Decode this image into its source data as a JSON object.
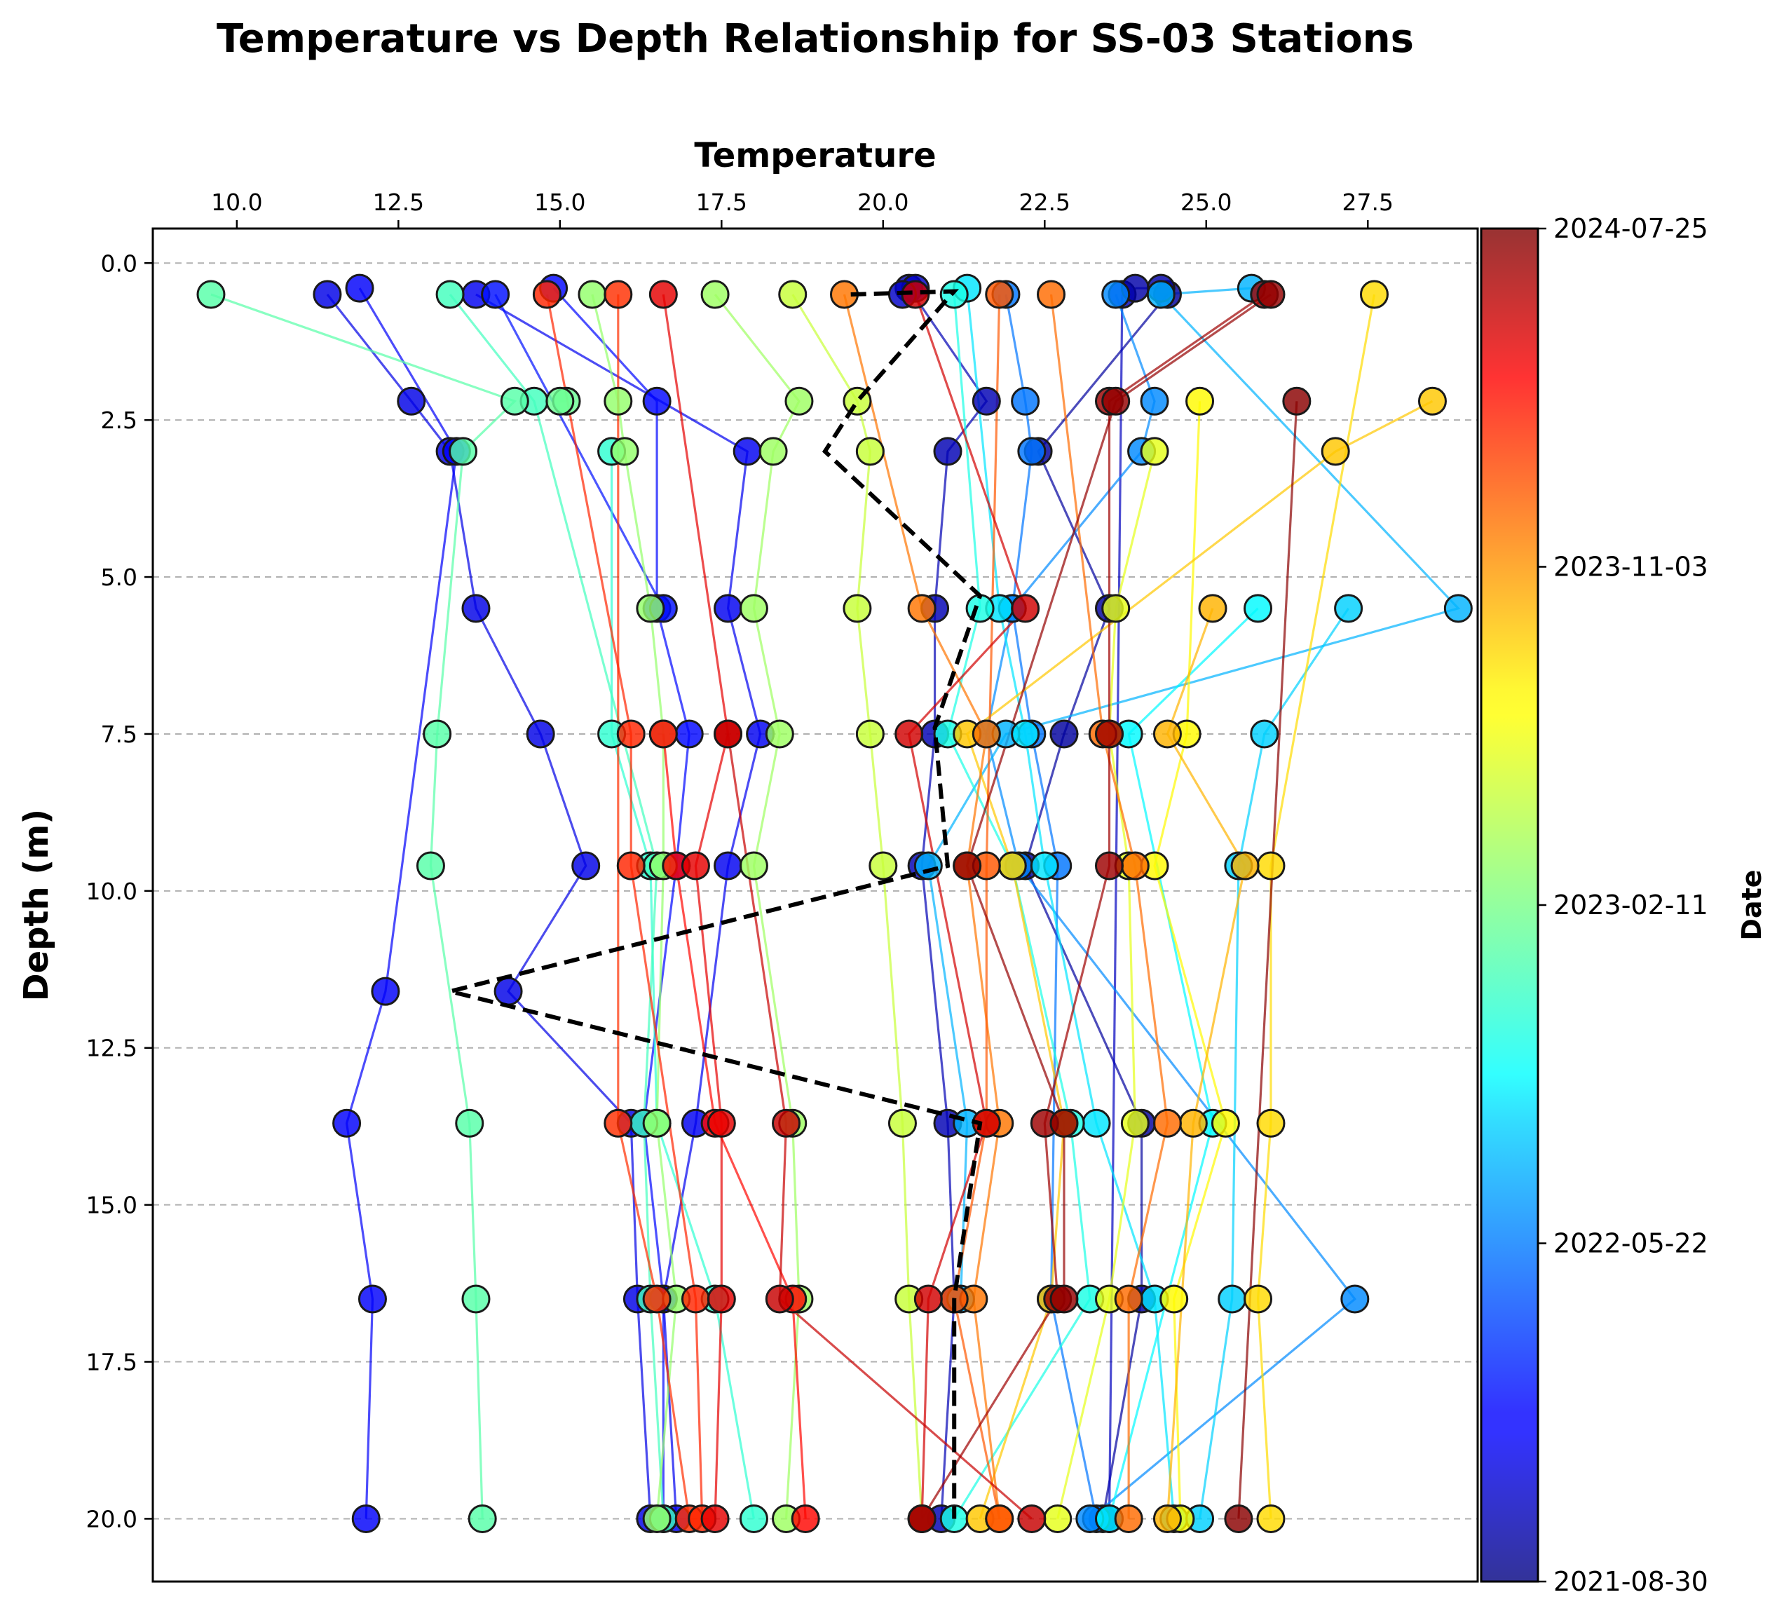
{
  "chart_data": {
    "type": "scatter",
    "title": "Temperature vs Depth Relationship for SS-03 Stations",
    "xlabel": "Temperature",
    "ylabel": "Depth (m)",
    "colorbar_label": "Date",
    "x_ticks": [
      10.0,
      12.5,
      15.0,
      17.5,
      20.0,
      22.5,
      25.0,
      27.5
    ],
    "x_tick_labels": [
      "10.0",
      "12.5",
      "15.0",
      "17.5",
      "20.0",
      "22.5",
      "25.0",
      "27.5"
    ],
    "y_ticks": [
      0.0,
      2.5,
      5.0,
      7.5,
      10.0,
      12.5,
      15.0,
      17.5,
      20.0
    ],
    "y_tick_labels": [
      "0.0",
      "2.5",
      "5.0",
      "7.5",
      "10.0",
      "12.5",
      "15.0",
      "17.5",
      "20.0"
    ],
    "xlim": [
      8.7,
      29.2
    ],
    "ylim": [
      21.0,
      -0.55
    ],
    "y_inverted": true,
    "x_axis_position": "top",
    "grid": "horizontal dashed",
    "colormap": "jet",
    "colorbar_ticks": [
      0.0,
      0.25,
      0.5,
      0.75,
      1.0
    ],
    "colorbar_tick_labels": [
      "2021-08-30",
      "2022-05-22",
      "2023-02-11",
      "2023-11-03",
      "2024-07-25"
    ],
    "colorbar_reversed_scale": true,
    "colorbar_note": "",
    "mean_profile_color": "#000000",
    "depths": [
      0.5,
      2.2,
      3.0,
      5.5,
      7.5,
      9.6,
      11.6,
      13.7,
      16.5,
      20.0
    ],
    "mean_profile": [
      {
        "temperature": 19.5,
        "depth": 0.5
      },
      {
        "temperature": 21.1,
        "depth": 0.45
      },
      {
        "temperature": 19.6,
        "depth": 2.2
      },
      {
        "temperature": 19.1,
        "depth": 3.0
      },
      {
        "temperature": 21.5,
        "depth": 5.3
      },
      {
        "temperature": 20.8,
        "depth": 7.4
      },
      {
        "temperature": 21.0,
        "depth": 9.6
      },
      {
        "temperature": 13.3,
        "depth": 11.6
      },
      {
        "temperature": 21.5,
        "depth": 13.7
      },
      {
        "temperature": 21.1,
        "depth": 16.5
      },
      {
        "temperature": 21.1,
        "depth": 20.0
      }
    ],
    "series": [
      {
        "c": 0.1,
        "points": [
          [
            11.4,
            0.5
          ],
          [
            12.7,
            2.2
          ],
          [
            13.3,
            3.0
          ],
          [
            13.7,
            5.5
          ],
          [
            14.7,
            7.5
          ],
          [
            15.4,
            9.6
          ],
          [
            14.2,
            11.6
          ],
          [
            16.1,
            13.7
          ],
          [
            16.2,
            16.5
          ],
          [
            16.4,
            20.0
          ]
        ]
      },
      {
        "c": 0.12,
        "points": [
          [
            11.9,
            0.4
          ],
          [
            13.4,
            3.0
          ],
          [
            12.3,
            11.6
          ],
          [
            11.7,
            13.7
          ],
          [
            12.1,
            16.5
          ],
          [
            12.0,
            20.0
          ]
        ]
      },
      {
        "c": 0.13,
        "points": [
          [
            14.9,
            0.4
          ],
          [
            16.5,
            2.2
          ],
          [
            16.5,
            5.5
          ],
          [
            17.0,
            7.5
          ],
          [
            16.8,
            9.6
          ],
          [
            16.3,
            13.7
          ],
          [
            16.6,
            16.5
          ],
          [
            16.6,
            20.0
          ]
        ]
      },
      {
        "c": 0.11,
        "points": [
          [
            13.7,
            0.5
          ],
          [
            17.9,
            3.0
          ],
          [
            17.6,
            5.5
          ],
          [
            18.1,
            7.5
          ],
          [
            17.6,
            9.6
          ],
          [
            17.1,
            13.7
          ],
          [
            16.6,
            16.5
          ],
          [
            16.8,
            20.0
          ]
        ]
      },
      {
        "c": 0.14,
        "points": [
          [
            14.0,
            0.5
          ],
          [
            16.6,
            5.5
          ]
        ]
      },
      {
        "c": 0.05,
        "points": [
          [
            20.4,
            0.4
          ],
          [
            21.6,
            2.2
          ],
          [
            21.0,
            3.0
          ],
          [
            20.8,
            5.5
          ],
          [
            20.8,
            7.5
          ],
          [
            20.6,
            9.6
          ],
          [
            21.0,
            13.7
          ],
          [
            21.1,
            16.5
          ],
          [
            20.9,
            20.0
          ]
        ]
      },
      {
        "c": 0.03,
        "points": [
          [
            24.4,
            0.5
          ],
          [
            22.4,
            3.0
          ],
          [
            23.5,
            5.5
          ],
          [
            22.8,
            7.5
          ],
          [
            22.2,
            9.6
          ],
          [
            24.0,
            13.7
          ],
          [
            24.0,
            16.5
          ],
          [
            23.4,
            20.0
          ]
        ]
      },
      {
        "c": 0.06,
        "points": [
          [
            23.7,
            0.5
          ],
          [
            23.5,
            20.0
          ]
        ]
      },
      {
        "c": 0.07,
        "points": [
          [
            20.5,
            0.4
          ],
          [
            20.3,
            0.5
          ]
        ]
      },
      {
        "c": 0.04,
        "points": [
          [
            24.3,
            0.4
          ],
          [
            23.9,
            0.4
          ]
        ]
      },
      {
        "c": 0.24,
        "points": [
          [
            21.9,
            0.5
          ],
          [
            22.2,
            2.2
          ],
          [
            22.3,
            3.0
          ],
          [
            22.0,
            5.5
          ],
          [
            22.3,
            7.5
          ],
          [
            22.7,
            9.6
          ],
          [
            22.6,
            16.5
          ],
          [
            23.3,
            20.0
          ]
        ]
      },
      {
        "c": 0.26,
        "points": [
          [
            23.6,
            0.5
          ],
          [
            24.2,
            2.2
          ],
          [
            24.0,
            3.0
          ],
          [
            22.0,
            5.5
          ],
          [
            21.6,
            7.5
          ],
          [
            22.1,
            9.6
          ],
          [
            27.3,
            16.5
          ],
          [
            23.2,
            20.0
          ]
        ]
      },
      {
        "c": 0.3,
        "points": [
          [
            25.7,
            0.4
          ],
          [
            24.3,
            0.5
          ],
          [
            28.9,
            5.5
          ],
          [
            21.9,
            7.5
          ],
          [
            20.7,
            9.6
          ],
          [
            21.3,
            13.7
          ],
          [
            21.2,
            16.5
          ]
        ]
      },
      {
        "c": 0.35,
        "points": [
          [
            21.3,
            0.4
          ],
          [
            21.8,
            5.5
          ],
          [
            22.2,
            7.5
          ],
          [
            22.5,
            9.6
          ],
          [
            23.3,
            13.7
          ],
          [
            24.2,
            16.5
          ],
          [
            24.5,
            20.0
          ]
        ]
      },
      {
        "c": 0.33,
        "points": [
          [
            27.2,
            5.5
          ],
          [
            25.9,
            7.5
          ],
          [
            25.5,
            9.6
          ],
          [
            25.4,
            16.5
          ],
          [
            24.9,
            20.0
          ]
        ]
      },
      {
        "c": 0.37,
        "points": [
          [
            25.8,
            5.5
          ],
          [
            23.8,
            7.5
          ],
          [
            25.1,
            13.7
          ],
          [
            23.5,
            20.0
          ]
        ]
      },
      {
        "c": 0.4,
        "points": [
          [
            21.1,
            0.5
          ],
          [
            21.5,
            5.5
          ],
          [
            21.0,
            7.5
          ],
          [
            22.0,
            9.6
          ],
          [
            22.9,
            13.7
          ],
          [
            23.2,
            16.5
          ],
          [
            21.1,
            20.0
          ]
        ]
      },
      {
        "c": 0.42,
        "points": [
          [
            15.8,
            3.0
          ],
          [
            15.8,
            7.5
          ],
          [
            16.4,
            9.6
          ],
          [
            16.5,
            13.7
          ],
          [
            17.4,
            16.5
          ],
          [
            18.0,
            20.0
          ]
        ]
      },
      {
        "c": 0.44,
        "points": [
          [
            13.3,
            0.5
          ],
          [
            14.6,
            2.2
          ],
          [
            16.5,
            9.6
          ],
          [
            16.3,
            13.7
          ],
          [
            16.4,
            16.5
          ],
          [
            16.6,
            20.0
          ]
        ]
      },
      {
        "c": 0.46,
        "points": [
          [
            9.6,
            0.5
          ],
          [
            14.3,
            2.2
          ],
          [
            13.5,
            3.0
          ],
          [
            13.1,
            7.5
          ],
          [
            13.0,
            9.6
          ],
          [
            13.6,
            13.7
          ],
          [
            13.7,
            16.5
          ],
          [
            13.8,
            20.0
          ]
        ]
      },
      {
        "c": 0.48,
        "points": [
          [
            15.1,
            2.2
          ],
          [
            15.0,
            2.2
          ]
        ]
      },
      {
        "c": 0.52,
        "points": [
          [
            15.5,
            0.5
          ],
          [
            15.9,
            2.2
          ],
          [
            16.0,
            3.0
          ],
          [
            16.4,
            5.5
          ],
          [
            16.6,
            7.5
          ],
          [
            16.6,
            9.6
          ],
          [
            16.5,
            13.7
          ],
          [
            16.8,
            16.5
          ],
          [
            16.5,
            20.0
          ]
        ]
      },
      {
        "c": 0.53,
        "points": [
          [
            17.4,
            0.5
          ],
          [
            18.7,
            2.2
          ],
          [
            18.3,
            3.0
          ],
          [
            18.0,
            5.5
          ],
          [
            18.4,
            7.5
          ],
          [
            18.0,
            9.6
          ],
          [
            18.6,
            13.7
          ],
          [
            18.7,
            16.5
          ],
          [
            18.5,
            20.0
          ]
        ]
      },
      {
        "c": 0.57,
        "points": [
          [
            18.6,
            0.5
          ],
          [
            19.6,
            2.2
          ],
          [
            19.8,
            3.0
          ],
          [
            19.6,
            5.5
          ],
          [
            19.8,
            7.5
          ],
          [
            20.0,
            9.6
          ],
          [
            20.3,
            13.7
          ],
          [
            20.4,
            16.5
          ],
          [
            20.6,
            20.0
          ]
        ]
      },
      {
        "c": 0.6,
        "points": [
          [
            24.2,
            3.0
          ],
          [
            23.6,
            5.5
          ],
          [
            23.5,
            7.5
          ],
          [
            23.8,
            9.6
          ],
          [
            23.9,
            13.7
          ],
          [
            23.5,
            16.5
          ],
          [
            22.7,
            20.0
          ]
        ]
      },
      {
        "c": 0.63,
        "points": [
          [
            24.9,
            2.2
          ],
          [
            24.7,
            7.5
          ],
          [
            24.2,
            9.6
          ],
          [
            25.3,
            13.7
          ],
          [
            24.5,
            16.5
          ],
          [
            24.6,
            20.0
          ]
        ]
      },
      {
        "c": 0.66,
        "points": [
          [
            27.6,
            0.5
          ],
          [
            26.0,
            9.6
          ],
          [
            26.0,
            13.7
          ],
          [
            25.8,
            16.5
          ],
          [
            26.0,
            20.0
          ]
        ]
      },
      {
        "c": 0.68,
        "points": [
          [
            28.5,
            2.2
          ],
          [
            27.0,
            3.0
          ],
          [
            21.3,
            7.5
          ],
          [
            22.0,
            9.6
          ],
          [
            22.8,
            13.7
          ],
          [
            22.6,
            16.5
          ],
          [
            21.5,
            20.0
          ]
        ]
      },
      {
        "c": 0.7,
        "points": [
          [
            25.1,
            5.5
          ],
          [
            24.4,
            7.5
          ],
          [
            25.6,
            9.6
          ],
          [
            24.8,
            13.7
          ],
          [
            24.4,
            20.0
          ]
        ]
      },
      {
        "c": 0.76,
        "points": [
          [
            19.4,
            0.5
          ],
          [
            20.6,
            5.5
          ],
          [
            21.6,
            7.5
          ],
          [
            21.3,
            9.6
          ],
          [
            21.8,
            13.7
          ],
          [
            21.4,
            16.5
          ],
          [
            21.8,
            20.0
          ]
        ]
      },
      {
        "c": 0.77,
        "points": [
          [
            22.6,
            0.5
          ],
          [
            23.4,
            7.5
          ],
          [
            23.9,
            9.6
          ],
          [
            24.4,
            13.7
          ],
          [
            23.8,
            16.5
          ],
          [
            23.8,
            20.0
          ]
        ]
      },
      {
        "c": 0.79,
        "points": [
          [
            21.8,
            0.5
          ],
          [
            21.6,
            9.6
          ],
          [
            21.6,
            13.7
          ],
          [
            21.1,
            16.5
          ],
          [
            21.8,
            20.0
          ]
        ]
      },
      {
        "c": 0.83,
        "points": [
          [
            15.9,
            0.5
          ],
          [
            15.9,
            13.7
          ],
          [
            16.5,
            16.5
          ],
          [
            17.0,
            20.0
          ]
        ]
      },
      {
        "c": 0.84,
        "points": [
          [
            14.8,
            0.5
          ],
          [
            16.1,
            7.5
          ],
          [
            16.1,
            9.6
          ],
          [
            17.1,
            16.5
          ],
          [
            17.2,
            20.0
          ]
        ]
      },
      {
        "c": 0.87,
        "points": [
          [
            16.6,
            7.5
          ],
          [
            16.8,
            9.6
          ],
          [
            17.4,
            13.7
          ],
          [
            18.6,
            16.5
          ],
          [
            18.8,
            20.0
          ]
        ]
      },
      {
        "c": 0.9,
        "points": [
          [
            16.6,
            0.5
          ],
          [
            17.6,
            7.5
          ],
          [
            17.1,
            9.6
          ],
          [
            17.5,
            13.7
          ],
          [
            17.5,
            16.5
          ],
          [
            17.4,
            20.0
          ]
        ]
      },
      {
        "c": 0.92,
        "points": [
          [
            20.5,
            0.5
          ],
          [
            22.2,
            5.5
          ],
          [
            20.4,
            7.5
          ],
          [
            21.6,
            13.7
          ],
          [
            20.7,
            16.5
          ],
          [
            20.6,
            20.0
          ]
        ]
      },
      {
        "c": 0.93,
        "points": [
          [
            17.6,
            7.5
          ],
          [
            18.5,
            13.7
          ],
          [
            18.4,
            16.5
          ],
          [
            22.3,
            20.0
          ]
        ]
      },
      {
        "c": 0.97,
        "points": [
          [
            25.9,
            0.5
          ],
          [
            23.5,
            2.2
          ],
          [
            23.5,
            7.5
          ],
          [
            23.5,
            9.6
          ],
          [
            22.5,
            13.7
          ],
          [
            22.7,
            16.5
          ],
          [
            20.6,
            20.0
          ]
        ]
      },
      {
        "c": 0.98,
        "points": [
          [
            26.0,
            0.5
          ],
          [
            23.6,
            2.2
          ],
          [
            21.3,
            9.6
          ],
          [
            22.8,
            13.7
          ],
          [
            22.8,
            16.5
          ]
        ]
      },
      {
        "c": 0.99,
        "points": [
          [
            26.4,
            2.2
          ],
          [
            25.5,
            20.0
          ]
        ]
      }
    ]
  }
}
